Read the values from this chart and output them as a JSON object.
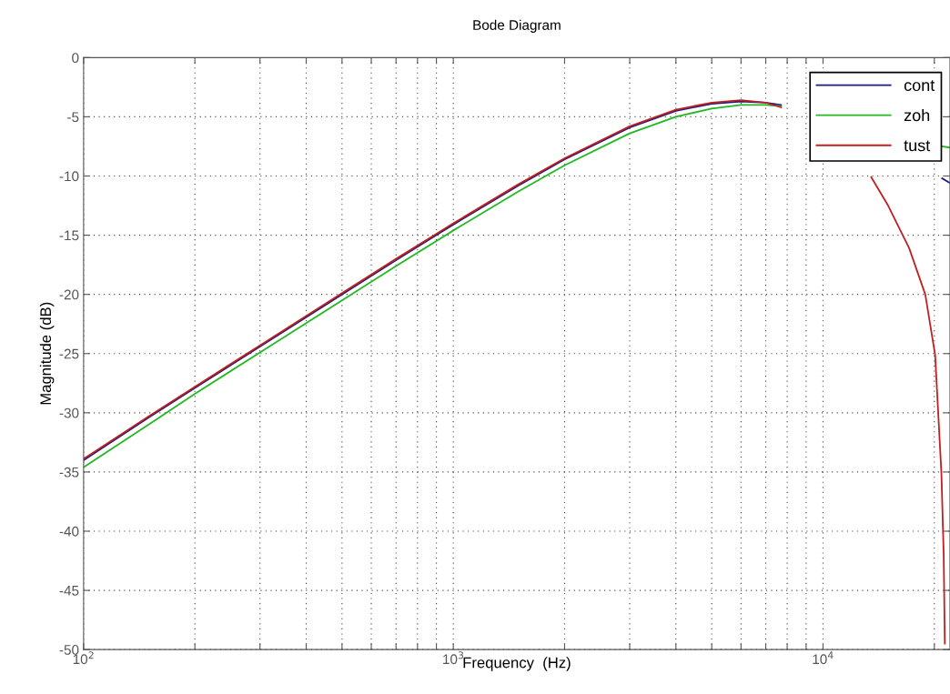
{
  "chart_data": {
    "type": "line",
    "title": "Bode Diagram",
    "xlabel": "Frequency  (Hz)",
    "ylabel": "Magnitude (dB)",
    "log": "x",
    "xlim": [
      100,
      22050
    ],
    "ylim": [
      -50,
      0
    ],
    "xticks": [
      {
        "value": 100,
        "label": "10$^{2}$"
      },
      {
        "value": 200,
        "label": null
      },
      {
        "value": 300,
        "label": null
      },
      {
        "value": 400,
        "label": null
      },
      {
        "value": 500,
        "label": null
      },
      {
        "value": 600,
        "label": null
      },
      {
        "value": 700,
        "label": null
      },
      {
        "value": 800,
        "label": null
      },
      {
        "value": 900,
        "label": null
      },
      {
        "value": 1000,
        "label": "10$^{3}$"
      },
      {
        "value": 2000,
        "label": null
      },
      {
        "value": 3000,
        "label": null
      },
      {
        "value": 4000,
        "label": null
      },
      {
        "value": 5000,
        "label": null
      },
      {
        "value": 6000,
        "label": null
      },
      {
        "value": 7000,
        "label": null
      },
      {
        "value": 8000,
        "label": null
      },
      {
        "value": 9000,
        "label": null
      },
      {
        "value": 10000,
        "label": "10$^{4}$"
      },
      {
        "value": 20000,
        "label": null
      }
    ],
    "yticks": [
      -50,
      -45,
      -40,
      -35,
      -30,
      -25,
      -20,
      -15,
      -10,
      -5,
      0
    ],
    "grid": true,
    "line_style": "solid",
    "marker": "none",
    "legend": "top right",
    "series": [
      {
        "name": "cont",
        "color": "#1c1c80",
        "x": [
          100,
          150,
          200,
          300,
          500,
          700,
          1000,
          1500,
          2000,
          3000,
          4000,
          5000,
          6000,
          7000,
          7700,
          10000,
          15000,
          21000,
          22050
        ],
        "values": [
          -34.0,
          -30.4,
          -27.9,
          -24.4,
          -20.0,
          -17.1,
          -14.1,
          -10.8,
          -8.6,
          -5.9,
          -4.5,
          -3.9,
          -3.7,
          -3.8,
          -4.0,
          null,
          null,
          -10.2,
          -10.6
        ]
      },
      {
        "name": "zoh",
        "color": "#22b822",
        "x": [
          100,
          150,
          200,
          300,
          500,
          700,
          1000,
          1500,
          2000,
          3000,
          4000,
          5000,
          6000,
          7000,
          7700,
          10000,
          15000,
          21000,
          22050
        ],
        "values": [
          -34.6,
          -31.0,
          -28.4,
          -24.9,
          -20.5,
          -17.6,
          -14.6,
          -11.3,
          -9.1,
          -6.4,
          -5.0,
          -4.3,
          -4.0,
          -4.0,
          -4.1,
          null,
          null,
          -7.5,
          -7.6
        ]
      },
      {
        "name": "tust",
        "color": "#c02020",
        "x": [
          100,
          150,
          200,
          300,
          500,
          700,
          1000,
          1500,
          2000,
          3000,
          4000,
          5000,
          6000,
          7000,
          7700,
          10000,
          13500,
          15000,
          17100,
          18900,
          20100,
          20900,
          21200,
          21350
        ],
        "values": [
          -33.9,
          -30.3,
          -27.8,
          -24.3,
          -19.9,
          -17.0,
          -14.0,
          -10.7,
          -8.5,
          -5.8,
          -4.4,
          -3.8,
          -3.6,
          -3.8,
          -4.2,
          null,
          -10.1,
          -12.5,
          -16.1,
          -20.0,
          -25.1,
          -35.1,
          -42.0,
          -49.5
        ]
      }
    ]
  }
}
